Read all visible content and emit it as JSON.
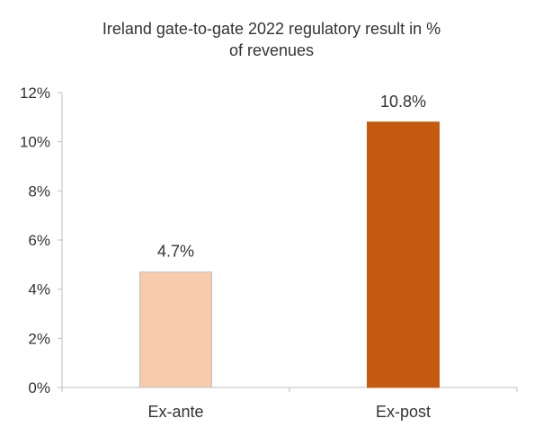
{
  "chart_data": {
    "type": "bar",
    "title_lines": [
      "Ireland gate-to-gate 2022 regulatory result in %",
      "of revenues"
    ],
    "categories": [
      "Ex-ante",
      "Ex-post"
    ],
    "values": [
      4.7,
      10.8
    ],
    "value_labels": [
      "4.7%",
      "10.8%"
    ],
    "bar_colors": [
      "#F8CBAD",
      "#C55A11"
    ],
    "bar_edge_colors": [
      "#BFBFBF",
      "#C55A11"
    ],
    "ylim": [
      0,
      12
    ],
    "yticks": [
      0,
      2,
      4,
      6,
      8,
      10,
      12
    ],
    "ytick_labels": [
      "0%",
      "2%",
      "4%",
      "6%",
      "8%",
      "10%",
      "12%"
    ],
    "grid": false,
    "legend": "none"
  }
}
